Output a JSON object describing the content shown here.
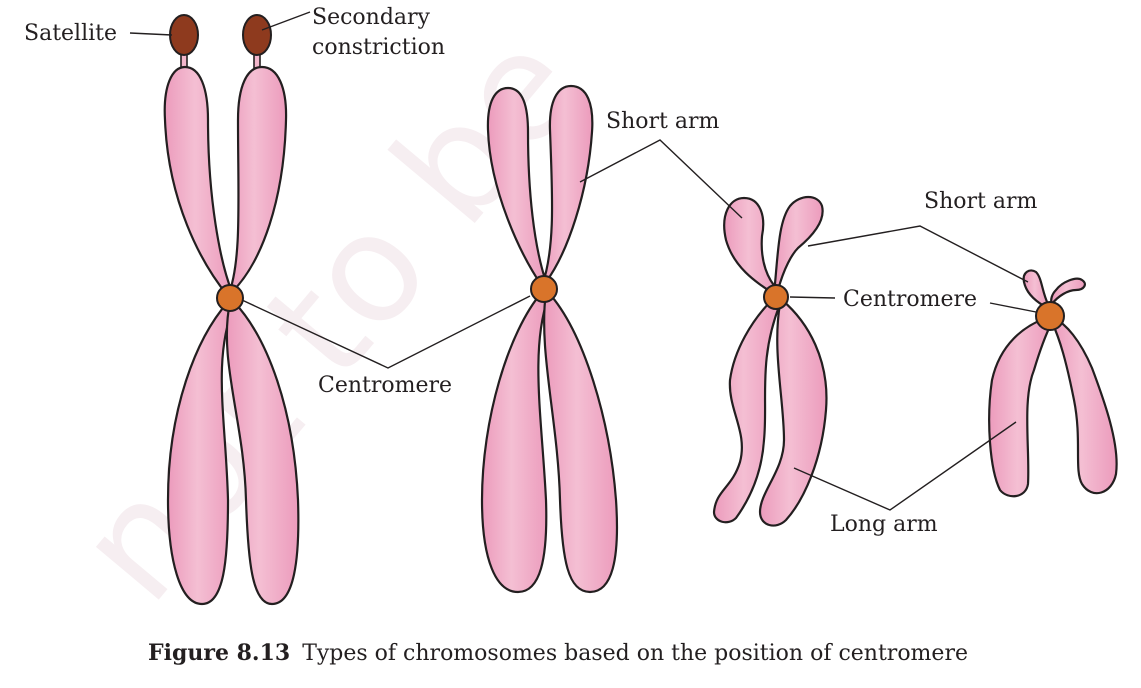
{
  "colors": {
    "arm": "#f4bfd3",
    "arm_edge": "#ec9bbc",
    "centromere": "#d9742a",
    "satellite": "#8e3a1e",
    "outline": "#231f20"
  },
  "labels": {
    "satellite": "Satellite",
    "secondary_1": "Secondary",
    "secondary_2": "constriction",
    "short_arm_1": "Short arm",
    "short_arm_2": "Short arm",
    "centromere_1": "Centromere",
    "centromere_2": "Centromere",
    "long_arm": "Long arm"
  },
  "watermark": "not to be",
  "caption": {
    "number": "Figure 8.13",
    "text": "Types of chromosomes based on the position of centromere"
  }
}
